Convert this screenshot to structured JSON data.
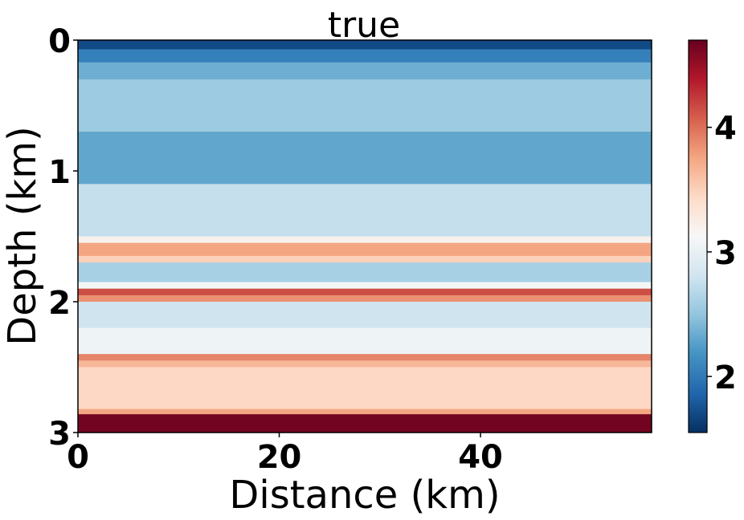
{
  "chart_data": {
    "type": "heatmap",
    "title": "true",
    "xlabel": "Distance (km)",
    "ylabel": "Depth (km)",
    "xlim": [
      0,
      57
    ],
    "ylim": [
      0,
      3
    ],
    "x_ticks": [
      "0",
      "20",
      "40"
    ],
    "y_ticks": [
      "0",
      "1",
      "2",
      "3"
    ],
    "colormap": "RdBu_r",
    "colorbar": {
      "range": [
        1.55,
        4.7
      ],
      "ticks": [
        "2",
        "3",
        "4"
      ]
    },
    "layers": [
      {
        "top": 0.0,
        "bottom": 0.07,
        "value": 1.7
      },
      {
        "top": 0.07,
        "bottom": 0.17,
        "value": 2.05
      },
      {
        "top": 0.17,
        "bottom": 0.3,
        "value": 2.35
      },
      {
        "top": 0.3,
        "bottom": 0.7,
        "value": 2.55
      },
      {
        "top": 0.7,
        "bottom": 1.1,
        "value": 2.3
      },
      {
        "top": 1.1,
        "bottom": 1.5,
        "value": 2.75
      },
      {
        "top": 1.5,
        "bottom": 1.55,
        "value": 3.2
      },
      {
        "top": 1.55,
        "bottom": 1.65,
        "value": 3.75
      },
      {
        "top": 1.65,
        "bottom": 1.7,
        "value": 3.5
      },
      {
        "top": 1.7,
        "bottom": 1.85,
        "value": 2.6
      },
      {
        "top": 1.85,
        "bottom": 1.9,
        "value": 3.1
      },
      {
        "top": 1.9,
        "bottom": 1.95,
        "value": 4.15
      },
      {
        "top": 1.95,
        "bottom": 2.0,
        "value": 3.85
      },
      {
        "top": 2.0,
        "bottom": 2.2,
        "value": 2.8
      },
      {
        "top": 2.2,
        "bottom": 2.4,
        "value": 3.05
      },
      {
        "top": 2.4,
        "bottom": 2.45,
        "value": 3.9
      },
      {
        "top": 2.45,
        "bottom": 2.5,
        "value": 3.65
      },
      {
        "top": 2.5,
        "bottom": 2.82,
        "value": 3.45
      },
      {
        "top": 2.82,
        "bottom": 2.86,
        "value": 3.75
      },
      {
        "top": 2.86,
        "bottom": 3.0,
        "value": 4.65
      }
    ]
  }
}
